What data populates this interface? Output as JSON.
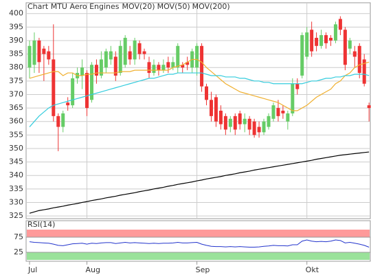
{
  "chart_data": [
    {
      "type": "candlestick",
      "title": "Chart MTU Aero Engines",
      "title_color": "#c05000",
      "categories": [
        "Jul",
        null,
        null,
        null,
        null,
        null,
        null,
        null,
        null,
        null,
        null,
        null,
        "Aug",
        null,
        null,
        null,
        null,
        null,
        null,
        null,
        null,
        null,
        null,
        null,
        null,
        null,
        null,
        null,
        null,
        null,
        null,
        null,
        null,
        null,
        null,
        "Sep",
        null,
        null,
        null,
        null,
        null,
        null,
        null,
        null,
        null,
        null,
        null,
        null,
        null,
        null,
        null,
        null,
        null,
        null,
        null,
        null,
        null,
        null,
        "Okt",
        null,
        null,
        null,
        null,
        null,
        null,
        null,
        null,
        null,
        null,
        null,
        null,
        null
      ],
      "open": [
        380,
        381,
        390,
        387,
        386,
        383,
        362,
        358,
        367,
        366,
        376,
        377,
        378,
        368,
        381,
        377,
        380,
        383,
        384,
        378,
        381,
        386,
        383,
        389,
        386,
        382,
        378,
        381,
        379,
        382,
        380,
        380,
        381,
        382,
        380,
        380,
        388,
        373,
        368,
        369,
        364,
        362,
        358,
        362,
        363,
        359,
        361,
        360,
        358,
        356,
        358,
        361,
        365,
        364,
        360,
        363,
        374,
        377,
        384,
        394,
        391,
        388,
        392,
        391,
        390,
        398,
        394,
        387,
        386,
        388,
        383,
        366
      ],
      "high": [
        390,
        393,
        391,
        388,
        388,
        396,
        363,
        364,
        369,
        378,
        380,
        383,
        379,
        382,
        383,
        386,
        387,
        388,
        386,
        390,
        392,
        388,
        391,
        390,
        387,
        384,
        383,
        382,
        383,
        384,
        384,
        389,
        382,
        384,
        387,
        389,
        389,
        374,
        371,
        370,
        366,
        363,
        362,
        363,
        364,
        363,
        362,
        361,
        360,
        361,
        363,
        367,
        368,
        366,
        364,
        376,
        376,
        393,
        395,
        397,
        393,
        394,
        393,
        392,
        397,
        399,
        395,
        391,
        388,
        389,
        385,
        367
      ],
      "low": [
        376,
        378,
        378,
        375,
        381,
        360,
        349,
        356,
        364,
        365,
        374,
        372,
        362,
        367,
        374,
        376,
        378,
        381,
        375,
        377,
        380,
        381,
        381,
        383,
        383,
        376,
        377,
        377,
        378,
        378,
        379,
        378,
        378,
        379,
        378,
        377,
        371,
        366,
        360,
        358,
        357,
        355,
        356,
        355,
        357,
        356,
        355,
        354,
        354,
        355,
        357,
        360,
        360,
        361,
        357,
        362,
        370,
        376,
        383,
        384,
        386,
        387,
        387,
        388,
        389,
        392,
        379,
        385,
        380,
        376,
        373,
        360
      ],
      "close": [
        388,
        390,
        382,
        385,
        383,
        362,
        358,
        363,
        366,
        376,
        378,
        380,
        365,
        381,
        377,
        383,
        386,
        386,
        377,
        388,
        391,
        383,
        390,
        385,
        385,
        378,
        381,
        379,
        381,
        380,
        382,
        388,
        380,
        381,
        386,
        388,
        373,
        368,
        362,
        360,
        359,
        357,
        361,
        357,
        359,
        361,
        357,
        355,
        356,
        360,
        362,
        366,
        362,
        363,
        363,
        374,
        372,
        392,
        393,
        386,
        388,
        392,
        389,
        390,
        396,
        394,
        381,
        390,
        384,
        378,
        374,
        365
      ],
      "up_color": "#66cc66",
      "down_color": "#ee3333",
      "series": [
        {
          "name": "MOV(20)",
          "color": "#f0b030",
          "values": [
            376,
            376.5,
            377,
            377.5,
            378,
            378.5,
            378.5,
            377,
            378,
            378,
            377,
            377,
            377.5,
            377.5,
            378,
            378,
            378,
            378,
            378,
            378.5,
            378.5,
            378.5,
            379,
            379,
            379,
            379,
            379,
            379,
            379,
            379,
            380,
            380.5,
            381,
            382,
            383,
            383,
            382,
            380,
            378.5,
            377,
            375.5,
            374,
            373,
            372,
            371,
            370.5,
            370,
            369.5,
            369,
            368.5,
            368,
            367.5,
            367,
            366,
            365,
            364,
            364,
            365,
            366,
            367.5,
            369,
            370,
            371,
            372,
            374,
            375,
            377,
            378,
            380,
            381,
            381.5,
            382
          ]
        },
        {
          "name": "MOV(50)",
          "color": "#33ccdd",
          "values": [
            358,
            360,
            362,
            363.5,
            365,
            366,
            366.5,
            367,
            367.5,
            368,
            368.5,
            369,
            369.5,
            370,
            370.5,
            371,
            371.5,
            372,
            372.5,
            373,
            373.5,
            374,
            374.5,
            375,
            375.5,
            376,
            376,
            376.5,
            377,
            377.5,
            377.5,
            378,
            378,
            378,
            378,
            378,
            378,
            377.5,
            377,
            377,
            377,
            376.5,
            376.5,
            376.5,
            376,
            376,
            375.5,
            375,
            375,
            374.5,
            374.5,
            374,
            374,
            374,
            374,
            374,
            374,
            374,
            374.5,
            375,
            375,
            375.5,
            376,
            376,
            376.5,
            376.5,
            377,
            377,
            377.5,
            377.5,
            377.5,
            377
          ]
        },
        {
          "name": "MOV(200)",
          "color": "#000000",
          "values": [
            326,
            326.5,
            327,
            327.3,
            327.6,
            328,
            328.3,
            328.6,
            329,
            329.3,
            329.6,
            330,
            330.3,
            330.7,
            331,
            331.3,
            331.7,
            332,
            332.3,
            332.7,
            333,
            333.3,
            333.6,
            334,
            334.3,
            334.6,
            335,
            335.3,
            335.6,
            336,
            336.3,
            336.7,
            337,
            337.3,
            337.6,
            338,
            338.3,
            338.7,
            339,
            339.3,
            339.6,
            340,
            340.3,
            340.6,
            341,
            341.3,
            341.6,
            342,
            342.3,
            342.6,
            342.9,
            343.2,
            343.5,
            343.8,
            344.1,
            344.4,
            344.7,
            345,
            345.3,
            345.6,
            346,
            346.3,
            346.6,
            346.9,
            347.2,
            347.5,
            347.7,
            347.9,
            348.1,
            348.3,
            348.5,
            348.7
          ]
        }
      ],
      "ylim": [
        324,
        404
      ],
      "yticks": [
        325,
        330,
        335,
        340,
        345,
        350,
        355,
        360,
        365,
        370,
        375,
        380,
        385,
        390,
        395,
        400
      ],
      "grid": true
    },
    {
      "type": "line",
      "title": "RSI(14)",
      "color": "#2233cc",
      "values": [
        60,
        58,
        57,
        56,
        55,
        52,
        48,
        47,
        50,
        53,
        54,
        55,
        52,
        55,
        54,
        56,
        57,
        57,
        54,
        56,
        58,
        56,
        57,
        56,
        55,
        54,
        55,
        54,
        55,
        55,
        56,
        58,
        56,
        56,
        57,
        58,
        52,
        48,
        45,
        44,
        44,
        43,
        44,
        43,
        44,
        43,
        42,
        42,
        43,
        45,
        46,
        48,
        47,
        47,
        46,
        50,
        50,
        62,
        66,
        62,
        60,
        61,
        60,
        62,
        66,
        64,
        56,
        58,
        55,
        52,
        48,
        42
      ],
      "ylim": [
        0,
        100
      ],
      "yticks": [
        25,
        75
      ],
      "bands": [
        {
          "from": 75,
          "to": 100,
          "color": "#ff8888"
        },
        {
          "from": 0,
          "to": 25,
          "color": "#88dd88"
        }
      ]
    }
  ]
}
